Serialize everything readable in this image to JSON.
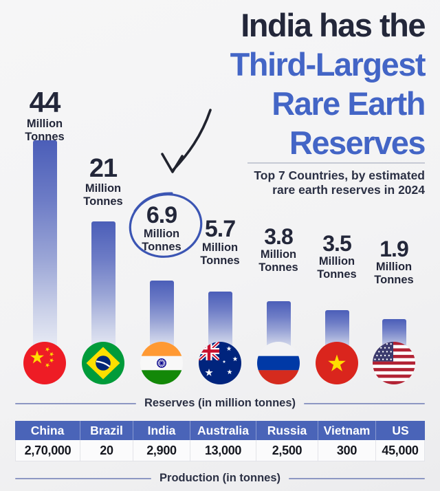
{
  "title": {
    "black_line": "India has the",
    "blue_lines": [
      "Third-Largest",
      "Rare Earth",
      "Reserves"
    ]
  },
  "subtitle_lines": [
    "Top 7 Countries, by estimated",
    "rare earth reserves in 2024"
  ],
  "chart_data": {
    "type": "bar",
    "title": "Top 7 Countries, by estimated rare earth reserves in 2024",
    "categories": [
      "China",
      "Brazil",
      "India",
      "Australia",
      "Russia",
      "Vietnam",
      "US"
    ],
    "values": [
      44,
      21,
      6.9,
      5.7,
      3.8,
      3.5,
      1.9
    ],
    "value_labels": [
      "44",
      "21",
      "6.9",
      "5.7",
      "3.8",
      "3.5",
      "1.9"
    ],
    "unit_lines": [
      "Million",
      "Tonnes"
    ],
    "highlighted_category": "India",
    "annotations": [
      "hand-drawn blue circle around India value",
      "curved arrow pointing from title to India value"
    ],
    "flags": [
      "china-flag",
      "brazil-flag",
      "india-flag",
      "australia-flag",
      "russia-flag",
      "vietnam-flag",
      "us-flag"
    ],
    "axis_caption": "Reserves (in million tonnes)",
    "legend": "none",
    "grid": "off"
  },
  "production_table": {
    "type": "table",
    "headers": [
      "China",
      "Brazil",
      "India",
      "Australia",
      "Russia",
      "Vietnam",
      "US"
    ],
    "values": [
      "2,70,000",
      "20",
      "2,900",
      "13,000",
      "2,500",
      "300",
      "45,000"
    ],
    "caption": "Production (in tonnes)"
  },
  "colors": {
    "accent_blue": "#4365c6",
    "dark_navy": "#23273a",
    "bar_top": "#4b5eb8",
    "bar_fade": "#eef0f7",
    "table_header_bg": "#4a64b8",
    "annotation_blue": "#3b55b3",
    "arrow_dark": "#20232e",
    "divider": "#8d97c3",
    "background": "#f3f3f4"
  }
}
